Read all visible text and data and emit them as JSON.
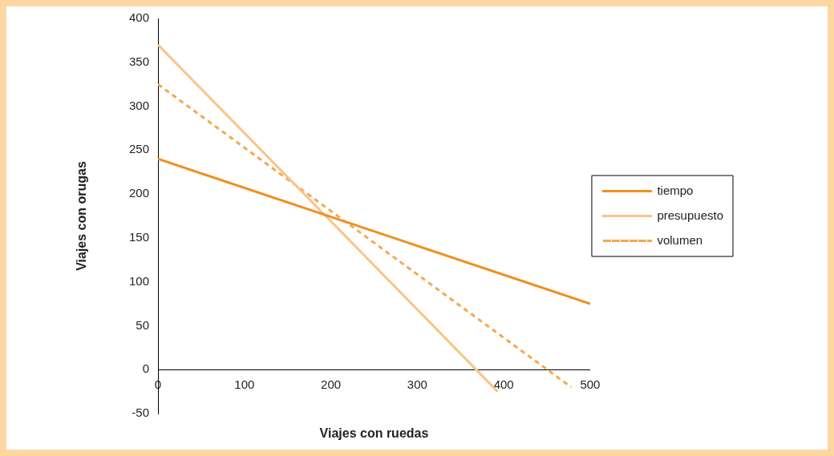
{
  "chart_data": {
    "type": "line",
    "xlabel": "Viajes con ruedas",
    "ylabel": "Viajes con orugas",
    "xlim": [
      0,
      500
    ],
    "xticks": [
      0,
      100,
      200,
      300,
      400,
      500
    ],
    "ylim": [
      -50,
      400
    ],
    "yticks": [
      -50,
      0,
      50,
      100,
      150,
      200,
      250,
      300,
      350,
      400
    ],
    "grid": false,
    "legend": "right",
    "marker": "none",
    "series": [
      {
        "name": "tiempo",
        "color": "#f0901e",
        "x": [
          0,
          500
        ],
        "values": [
          240,
          75
        ]
      },
      {
        "name": "presupuesto",
        "color": "#f9c48a",
        "x": [
          0,
          393
        ],
        "values": [
          370,
          -25
        ]
      },
      {
        "name": "volumen",
        "color": "#f5a94e",
        "x": [
          0,
          478
        ],
        "values": [
          325,
          -20
        ],
        "line_style": "dashed"
      }
    ]
  }
}
